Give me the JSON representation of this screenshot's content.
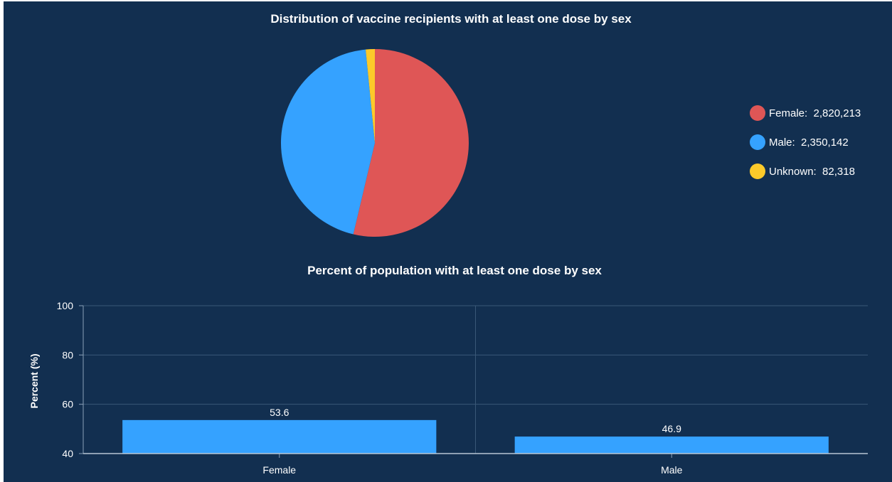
{
  "chart_data": [
    {
      "type": "pie",
      "title": "Distribution of vaccine recipients with at least one dose by sex",
      "slices": [
        {
          "label": "Female",
          "value": 2820213,
          "display_value": "2,820,213",
          "color": "#df5656"
        },
        {
          "label": "Male",
          "value": 2350142,
          "display_value": "2,350,142",
          "color": "#35a2ff"
        },
        {
          "label": "Unknown",
          "value": 82318,
          "display_value": "82,318",
          "color": "#fcca2a"
        }
      ],
      "legend_position": "right"
    },
    {
      "type": "bar",
      "title": "Percent of population with at least one dose by sex",
      "categories": [
        "Female",
        "Male"
      ],
      "values": [
        53.6,
        46.9
      ],
      "value_labels": [
        "53.6",
        "46.9"
      ],
      "xlabel": "",
      "ylabel": "Percent (%)",
      "ylim": [
        40,
        100
      ],
      "yticks": [
        40,
        60,
        80,
        100
      ],
      "bar_color": "#35a2ff",
      "grid": true
    }
  ],
  "colors": {
    "background": "#122f50",
    "gridline": "#3a5877",
    "text": "#ffffff"
  }
}
